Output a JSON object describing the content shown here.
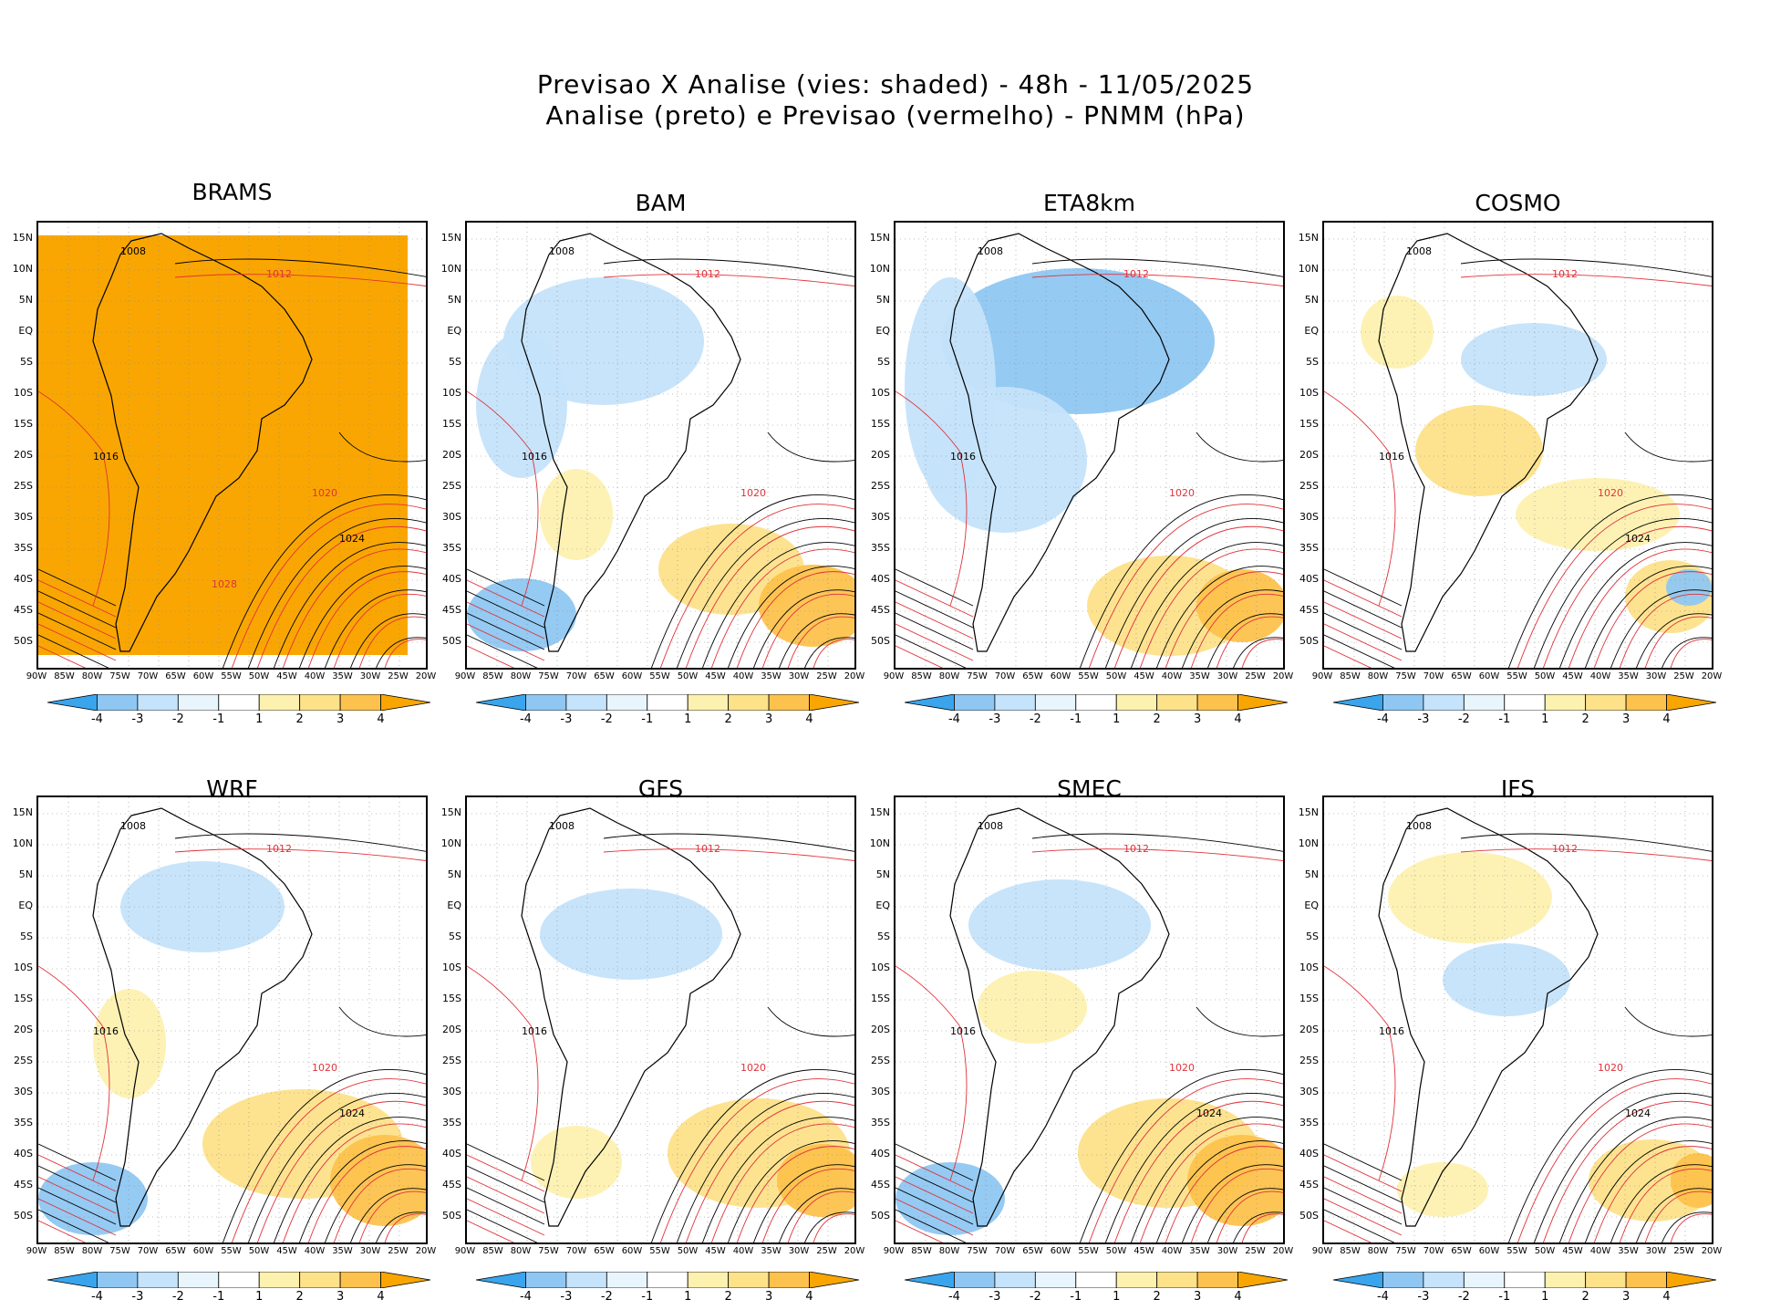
{
  "header": {
    "line1": "Previsao X Analise (vies: shaded) - 48h - 11/05/2025",
    "line2": "Analise (preto) e Previsao (vermelho) - PNMM (hPa)"
  },
  "colors": {
    "neg4": "#3aa5ec",
    "neg3": "#8fc7f2",
    "neg2": "#c5e3fa",
    "neg1": "#e8f5fd",
    "zero": "#ffffff",
    "pos1": "#fdf1b0",
    "pos2": "#fde28a",
    "pos3": "#fdc24d",
    "pos4": "#f9a602",
    "analysis": "#000000",
    "forecast": "#e0323a"
  },
  "colorbar_labels": [
    "-4",
    "-3",
    "-2",
    "-1",
    "1",
    "2",
    "3",
    "4"
  ],
  "lat_labels": [
    "15N",
    "10N",
    "5N",
    "EQ",
    "5S",
    "10S",
    "15S",
    "20S",
    "25S",
    "30S",
    "35S",
    "40S",
    "45S",
    "50S"
  ],
  "lon_labels": [
    "90W",
    "85W",
    "80W",
    "75W",
    "70W",
    "65W",
    "60W",
    "55W",
    "50W",
    "45W",
    "40W",
    "35W",
    "30W",
    "25W",
    "20W"
  ],
  "panels": [
    {
      "name": "BRAMS",
      "contours": [
        "1008",
        "1012",
        "1016",
        "1020",
        "1024",
        "1028"
      ]
    },
    {
      "name": "BAM",
      "contours": [
        "1008",
        "1012",
        "1016",
        "1020"
      ]
    },
    {
      "name": "ETA8km",
      "contours": [
        "1008",
        "1012",
        "1016",
        "1020"
      ]
    },
    {
      "name": "COSMO",
      "contours": [
        "1008",
        "1012",
        "1016",
        "1020",
        "1024"
      ]
    },
    {
      "name": "WRF",
      "contours": [
        "1008",
        "1012",
        "1016",
        "1020",
        "1024"
      ]
    },
    {
      "name": "GFS",
      "contours": [
        "1008",
        "1012",
        "1016",
        "1020"
      ]
    },
    {
      "name": "SMEC",
      "contours": [
        "1008",
        "1012",
        "1016",
        "1020",
        "1024"
      ]
    },
    {
      "name": "IFS",
      "contours": [
        "1008",
        "1012",
        "1016",
        "1020",
        "1024"
      ]
    }
  ]
}
